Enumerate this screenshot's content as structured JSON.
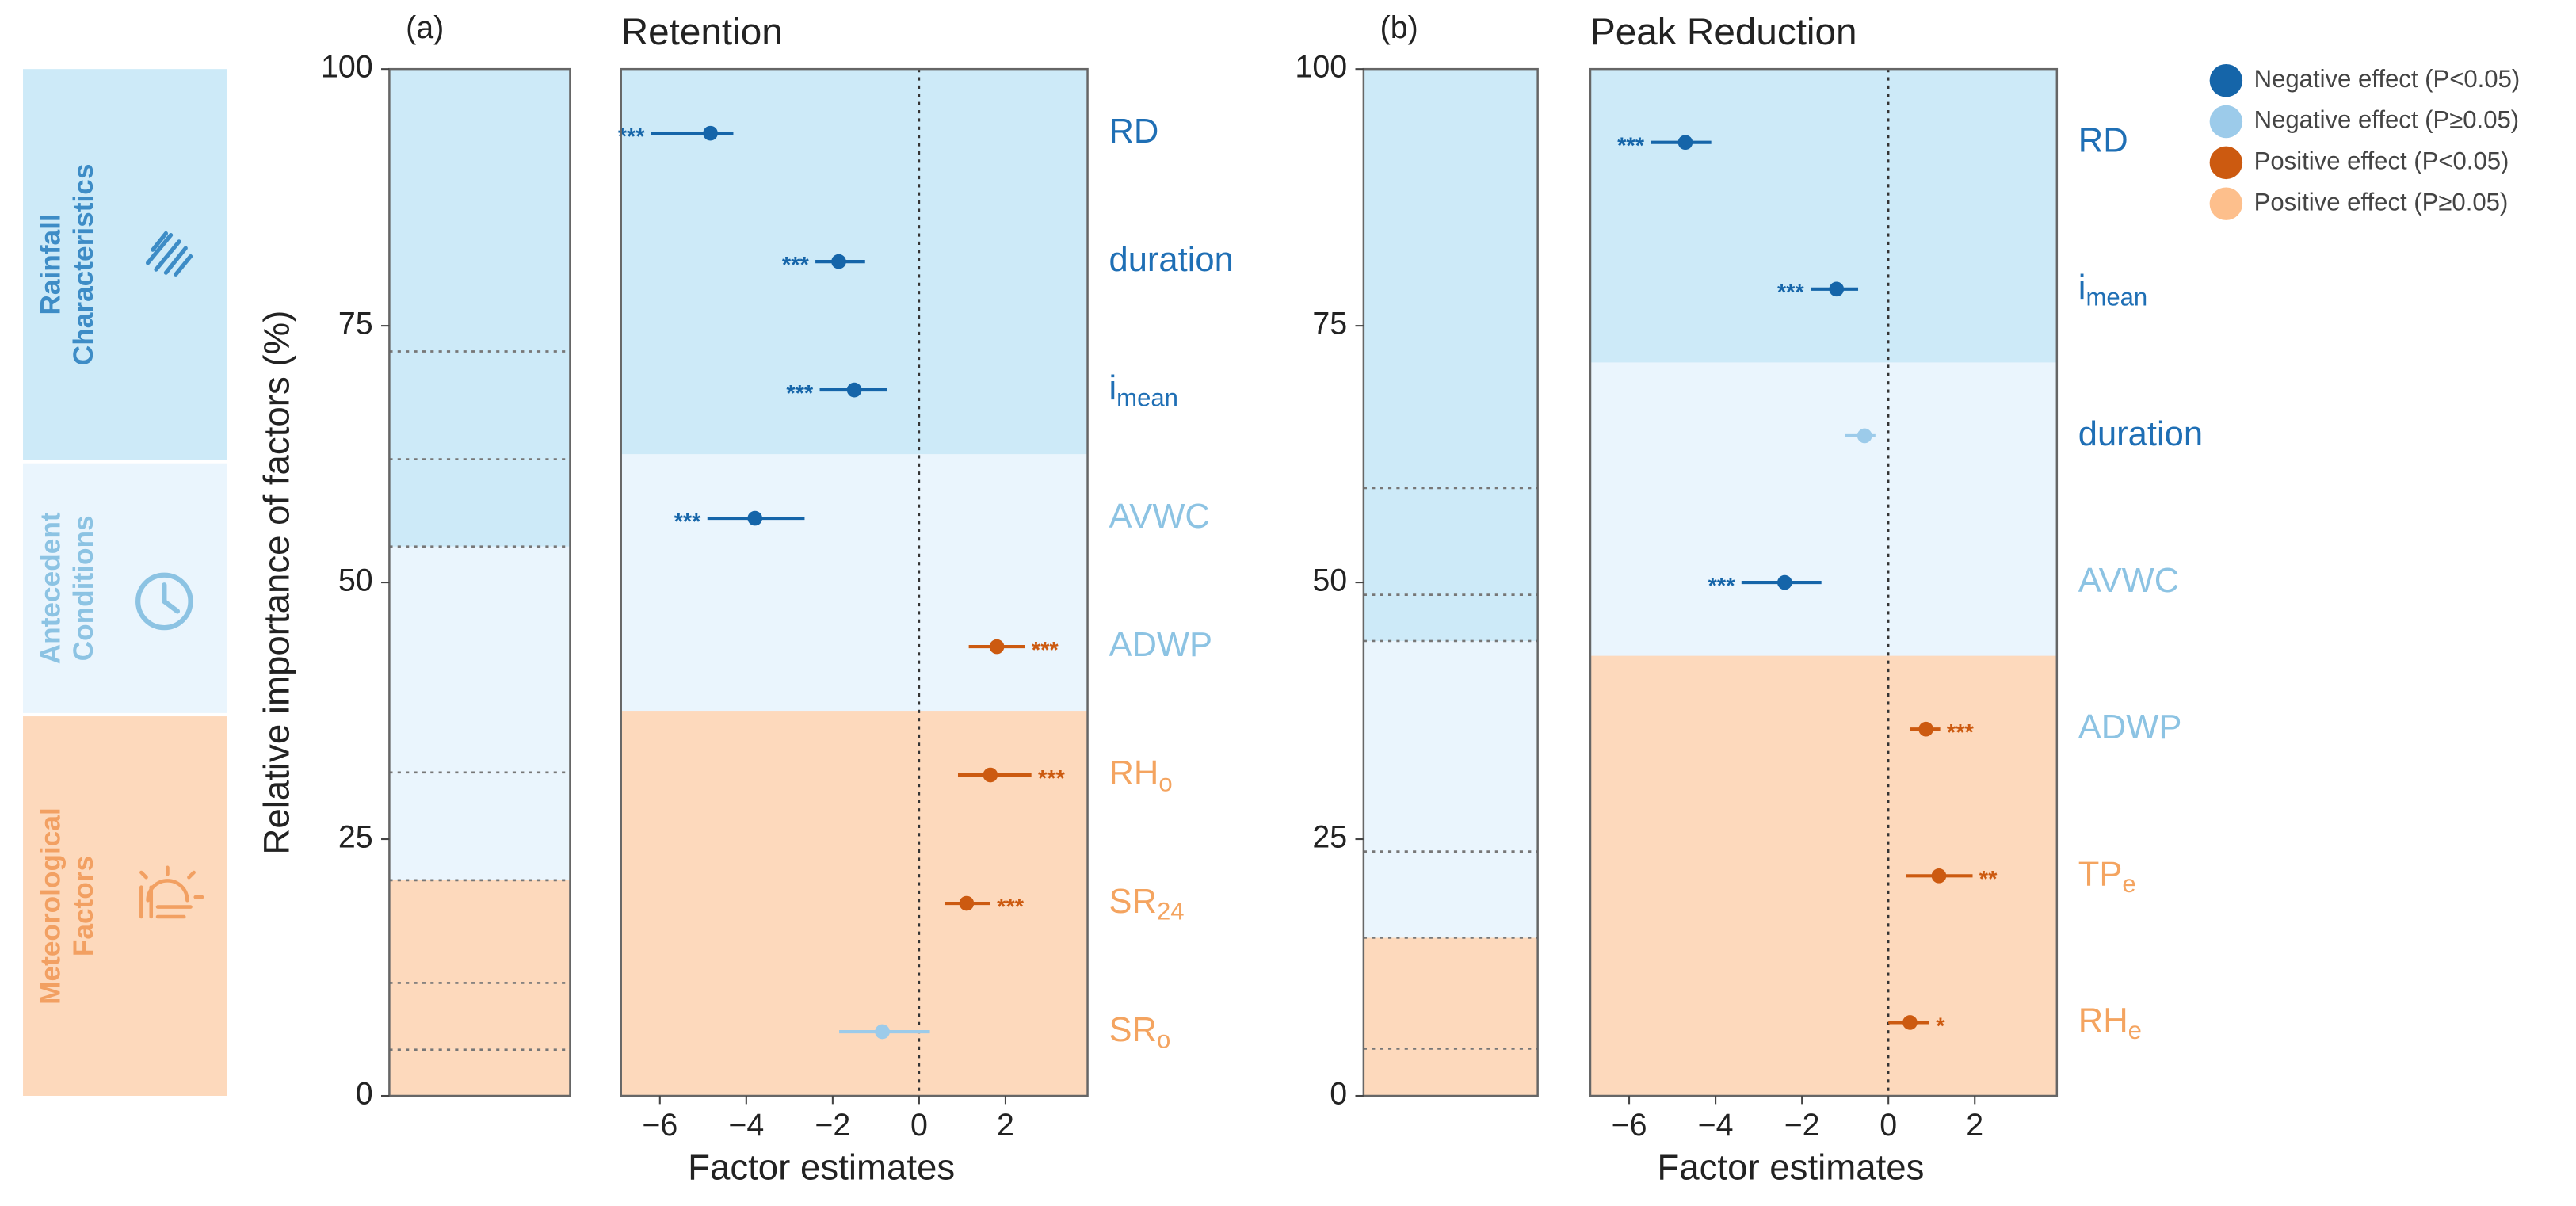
{
  "legend": [
    {
      "label": "Negative effect (P<0.05)",
      "color": "#1565a9"
    },
    {
      "label": "Negative effect (P≥0.05)",
      "color": "#9ccbea"
    },
    {
      "label": "Positive effect (P<0.05)",
      "color": "#cc5a10"
    },
    {
      "label": "Positive effect (P≥0.05)",
      "color": "#fdbf8c"
    }
  ],
  "groups": [
    {
      "label_lines": [
        "Rainfall",
        "Characteristics"
      ],
      "color": "#cdeaf8",
      "text_color": "#3d8cc6"
    },
    {
      "label_lines": [
        "Antecedent",
        "Conditions"
      ],
      "color": "#eaf5fd",
      "text_color": "#8cc3e3"
    },
    {
      "label_lines": [
        "Meteorological",
        "Factors"
      ],
      "color": "#fdd9bc",
      "text_color": "#f2a062"
    }
  ],
  "chart_data": [
    {
      "type": "stacked-bar",
      "panel_label": "(a)",
      "ylabel": "Relative importance of factors (%)",
      "ylim": [
        0,
        100
      ],
      "yticks": [
        0,
        25,
        50,
        75,
        100
      ],
      "values": [
        4.5,
        6.5,
        10,
        10.5,
        22,
        8.5,
        10.5,
        27.5
      ],
      "colors": [
        "#fdd9bc",
        "#fdd9bc",
        "#fdd9bc",
        "#eaf5fd",
        "#eaf5fd",
        "#cdeaf8",
        "#cdeaf8",
        "#cdeaf8"
      ]
    },
    {
      "type": "forest",
      "title": "Retention",
      "xlabel": "Factor estimates",
      "xlim": [
        -6.9,
        3.9
      ],
      "xticks": [
        {
          "value": -6,
          "label": "−6"
        },
        {
          "value": -4,
          "label": "−4"
        },
        {
          "value": -2,
          "label": "−2"
        },
        0,
        2
      ],
      "rows": [
        {
          "label": {
            "text": "RD"
          },
          "label_color": "#1f6fb5",
          "band_color": "#cdeaf8",
          "estimate": -4.83,
          "ci": [
            -6.2,
            -4.3
          ],
          "color": "#1565a9",
          "stars": "***"
        },
        {
          "label": {
            "text": "duration"
          },
          "label_color": "#1f6fb5",
          "band_color": "#cdeaf8",
          "estimate": -1.86,
          "ci": [
            -2.4,
            -1.25
          ],
          "color": "#1565a9",
          "stars": "***"
        },
        {
          "label": {
            "text": "i",
            "sub": "mean"
          },
          "label_color": "#1f6fb5",
          "band_color": "#cdeaf8",
          "estimate": -1.5,
          "ci": [
            -2.3,
            -0.75
          ],
          "color": "#1565a9",
          "stars": "***"
        },
        {
          "label": {
            "text": "AVWC"
          },
          "label_color": "#8cc3e3",
          "band_color": "#eaf5fd",
          "estimate": -3.8,
          "ci": [
            -4.9,
            -2.65
          ],
          "color": "#1565a9",
          "stars": "***"
        },
        {
          "label": {
            "text": "ADWP"
          },
          "label_color": "#8cc3e3",
          "band_color": "#eaf5fd",
          "estimate": 1.8,
          "ci": [
            1.15,
            2.45
          ],
          "color": "#cc5a10",
          "stars": "***"
        },
        {
          "label": {
            "text": "RH",
            "sub": "o"
          },
          "label_color": "#f4a460",
          "band_color": "#fdd9bc",
          "estimate": 1.65,
          "ci": [
            0.9,
            2.6
          ],
          "color": "#cc5a10",
          "stars": "***"
        },
        {
          "label": {
            "text": "SR",
            "sub": "24"
          },
          "label_color": "#f4a460",
          "band_color": "#fdd9bc",
          "estimate": 1.1,
          "ci": [
            0.6,
            1.65
          ],
          "color": "#cc5a10",
          "stars": "***"
        },
        {
          "label": {
            "text": "SR",
            "sub": "o"
          },
          "label_color": "#f4a460",
          "band_color": "#fdd9bc",
          "estimate": -0.85,
          "ci": [
            -1.85,
            0.25
          ],
          "color": "#9ccbea"
        }
      ]
    },
    {
      "type": "stacked-bar",
      "panel_label": "(b)",
      "ylim": [
        0,
        100
      ],
      "yticks": [
        0,
        25,
        50,
        75,
        100
      ],
      "values": [
        4.6,
        10.8,
        8.4,
        20.5,
        4.5,
        10.4,
        40.8
      ],
      "colors": [
        "#fdd9bc",
        "#fdd9bc",
        "#eaf5fd",
        "#eaf5fd",
        "#cdeaf8",
        "#cdeaf8",
        "#cdeaf8"
      ]
    },
    {
      "type": "forest",
      "title": "Peak Reduction",
      "xlabel": "Factor estimates",
      "xlim": [
        -6.9,
        3.9
      ],
      "xticks": [
        {
          "value": -6,
          "label": "−6"
        },
        {
          "value": -4,
          "label": "−4"
        },
        {
          "value": -2,
          "label": "−2"
        },
        0,
        2
      ],
      "rows": [
        {
          "label": {
            "text": "RD"
          },
          "label_color": "#1f6fb5",
          "band_color": "#cdeaf8",
          "estimate": -4.7,
          "ci": [
            -5.5,
            -4.1
          ],
          "color": "#1565a9",
          "stars": "***"
        },
        {
          "label": {
            "text": "i",
            "sub": "mean"
          },
          "label_color": "#1f6fb5",
          "band_color": "#cdeaf8",
          "estimate": -1.2,
          "ci": [
            -1.8,
            -0.7
          ],
          "color": "#1565a9",
          "stars": "***"
        },
        {
          "label": {
            "text": "duration"
          },
          "label_color": "#1f6fb5",
          "band_color": "#eaf5fd",
          "estimate": -0.55,
          "ci": [
            -1.0,
            -0.3
          ],
          "color": "#9ccbea"
        },
        {
          "label": {
            "text": "AVWC"
          },
          "label_color": "#8cc3e3",
          "band_color": "#eaf5fd",
          "estimate": -2.4,
          "ci": [
            -3.4,
            -1.55
          ],
          "color": "#1565a9",
          "stars": "***"
        },
        {
          "label": {
            "text": "ADWP"
          },
          "label_color": "#8cc3e3",
          "band_color": "#fdd9bc",
          "estimate": 0.87,
          "ci": [
            0.5,
            1.2
          ],
          "color": "#cc5a10",
          "stars": "***"
        },
        {
          "label": {
            "text": "TP",
            "sub": "e"
          },
          "label_color": "#f4a460",
          "band_color": "#fdd9bc",
          "estimate": 1.17,
          "ci": [
            0.4,
            1.95
          ],
          "color": "#cc5a10",
          "stars": "**"
        },
        {
          "label": {
            "text": "RH",
            "sub": "e"
          },
          "label_color": "#f4a460",
          "band_color": "#fdd9bc",
          "estimate": 0.5,
          "ci": [
            0,
            0.95
          ],
          "color": "#cc5a10",
          "stars": "*"
        }
      ]
    }
  ]
}
